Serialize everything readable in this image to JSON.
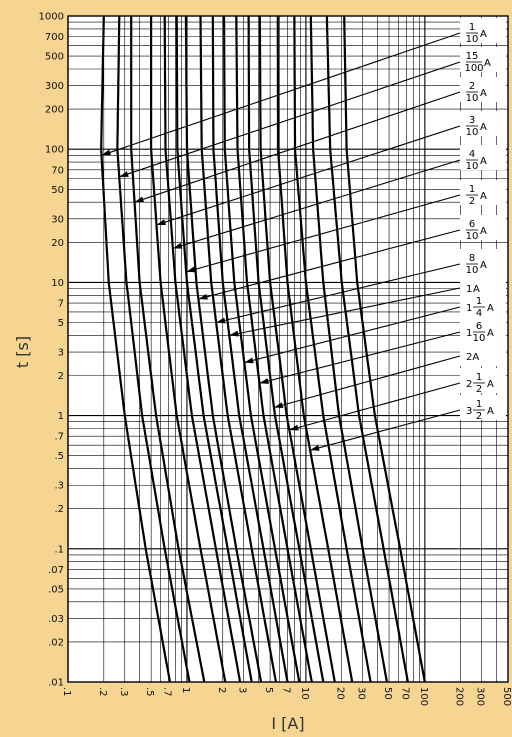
{
  "chart_data": {
    "type": "line",
    "title": "",
    "xlabel": "I [A]",
    "ylabel": "t [s]",
    "x_scale": "log",
    "y_scale": "log",
    "xlim": [
      0.1,
      500
    ],
    "ylim": [
      0.01,
      1000
    ],
    "grid": true,
    "x_tick_labels": [
      ".1",
      ".2",
      ".3",
      ".5",
      ".7",
      "1",
      "2",
      "3",
      "5",
      "7",
      "10",
      "20",
      "30",
      "50",
      "70",
      "100",
      "200",
      "300",
      "500"
    ],
    "y_tick_labels": [
      "1000",
      "700",
      "500",
      "300",
      "200",
      "100",
      "70",
      "50",
      "30",
      "20",
      "10",
      "7",
      "5",
      "3",
      "2",
      "1",
      ".7",
      ".5",
      ".3",
      ".2",
      ".1",
      ".07",
      ".05",
      ".03",
      ".02",
      ".01"
    ],
    "series": [
      {
        "name": "1/10 A",
        "label": {
          "whole": "",
          "num": "1",
          "den": "10",
          "unit": "A"
        },
        "points": [
          [
            0.2,
            1000
          ],
          [
            0.19,
            100
          ],
          [
            0.22,
            10
          ],
          [
            0.3,
            1
          ],
          [
            0.45,
            0.1
          ],
          [
            0.72,
            0.01
          ]
        ]
      },
      {
        "name": "15/100 A",
        "label": {
          "whole": "",
          "num": "15",
          "den": "100",
          "unit": "A"
        },
        "points": [
          [
            0.27,
            1000
          ],
          [
            0.26,
            100
          ],
          [
            0.31,
            10
          ],
          [
            0.42,
            1
          ],
          [
            0.65,
            0.1
          ],
          [
            1.05,
            0.01
          ]
        ]
      },
      {
        "name": "2/10 A",
        "label": {
          "whole": "",
          "num": "2",
          "den": "10",
          "unit": "A"
        },
        "points": [
          [
            0.34,
            1000
          ],
          [
            0.34,
            100
          ],
          [
            0.4,
            10
          ],
          [
            0.55,
            1
          ],
          [
            0.85,
            0.1
          ],
          [
            1.4,
            0.01
          ]
        ]
      },
      {
        "name": "3/10 A",
        "label": {
          "whole": "",
          "num": "3",
          "den": "10",
          "unit": "A"
        },
        "points": [
          [
            0.5,
            1000
          ],
          [
            0.5,
            100
          ],
          [
            0.6,
            10
          ],
          [
            0.82,
            1
          ],
          [
            1.3,
            0.1
          ],
          [
            2.1,
            0.01
          ]
        ]
      },
      {
        "name": "4/10 A",
        "label": {
          "whole": "",
          "num": "4",
          "den": "10",
          "unit": "A"
        },
        "points": [
          [
            0.65,
            1000
          ],
          [
            0.66,
            100
          ],
          [
            0.8,
            10
          ],
          [
            1.1,
            1
          ],
          [
            1.75,
            0.1
          ],
          [
            2.8,
            0.01
          ]
        ]
      },
      {
        "name": "1/2 A",
        "label": {
          "whole": "",
          "num": "1",
          "den": "2",
          "unit": "A"
        },
        "points": [
          [
            0.82,
            1000
          ],
          [
            0.83,
            100
          ],
          [
            1.0,
            10
          ],
          [
            1.38,
            1
          ],
          [
            2.2,
            0.1
          ],
          [
            3.5,
            0.01
          ]
        ]
      },
      {
        "name": "6/10 A",
        "label": {
          "whole": "",
          "num": "6",
          "den": "10",
          "unit": "A"
        },
        "points": [
          [
            0.98,
            1000
          ],
          [
            1.0,
            100
          ],
          [
            1.2,
            10
          ],
          [
            1.65,
            1
          ],
          [
            2.6,
            0.1
          ],
          [
            4.2,
            0.01
          ]
        ]
      },
      {
        "name": "8/10 A",
        "label": {
          "whole": "",
          "num": "8",
          "den": "10",
          "unit": "A"
        },
        "points": [
          [
            1.3,
            1000
          ],
          [
            1.33,
            100
          ],
          [
            1.6,
            10
          ],
          [
            2.2,
            1
          ],
          [
            3.5,
            0.1
          ],
          [
            5.6,
            0.01
          ]
        ]
      },
      {
        "name": "1 A",
        "label": {
          "whole": "1",
          "num": "",
          "den": "",
          "unit": "A"
        },
        "points": [
          [
            1.65,
            1000
          ],
          [
            1.67,
            100
          ],
          [
            2.0,
            10
          ],
          [
            2.75,
            1
          ],
          [
            4.4,
            0.1
          ],
          [
            7.0,
            0.01
          ]
        ]
      },
      {
        "name": "1 1/4 A",
        "label": {
          "whole": "1",
          "num": "1",
          "den": "4",
          "unit": "A"
        },
        "points": [
          [
            2.05,
            1000
          ],
          [
            2.08,
            100
          ],
          [
            2.5,
            10
          ],
          [
            3.45,
            1
          ],
          [
            5.5,
            0.1
          ],
          [
            8.8,
            0.01
          ]
        ]
      },
      {
        "name": "1 6/10 A",
        "label": {
          "whole": "1",
          "num": "6",
          "den": "10",
          "unit": "A"
        },
        "points": [
          [
            2.6,
            1000
          ],
          [
            2.66,
            100
          ],
          [
            3.2,
            10
          ],
          [
            4.4,
            1
          ],
          [
            7.0,
            0.1
          ],
          [
            11.2,
            0.01
          ]
        ]
      },
      {
        "name": "2 A",
        "label": {
          "whole": "",
          "num": "",
          "den": "",
          "unit": "2A"
        },
        "points": [
          [
            3.3,
            1000
          ],
          [
            3.33,
            100
          ],
          [
            4.0,
            10
          ],
          [
            5.5,
            1
          ],
          [
            8.8,
            0.1
          ],
          [
            14,
            0.01
          ]
        ]
      },
      {
        "name": "2 1/2 A",
        "label": {
          "whole": "2",
          "num": "1",
          "den": "2",
          "unit": "A"
        },
        "points": [
          [
            4.1,
            1000
          ],
          [
            4.16,
            100
          ],
          [
            5.0,
            10
          ],
          [
            6.9,
            1
          ],
          [
            11,
            0.1
          ],
          [
            17.5,
            0.01
          ]
        ]
      },
      {
        "name": "3 1/2 A",
        "label": {
          "whole": "3",
          "num": "1",
          "den": "2",
          "unit": "A"
        },
        "points": [
          [
            5.8,
            1000
          ],
          [
            5.83,
            100
          ],
          [
            7.0,
            10
          ],
          [
            9.6,
            1
          ],
          [
            15.4,
            0.1
          ],
          [
            24.5,
            0.01
          ]
        ]
      }
    ],
    "extra_curves": [
      {
        "points": [
          [
            8.0,
            1000
          ],
          [
            8.1,
            100
          ],
          [
            10,
            10
          ],
          [
            14,
            1
          ],
          [
            22,
            0.1
          ],
          [
            35,
            0.01
          ]
        ]
      },
      {
        "points": [
          [
            11,
            1000
          ],
          [
            11.5,
            100
          ],
          [
            14,
            10
          ],
          [
            19,
            1
          ],
          [
            30,
            0.1
          ],
          [
            48,
            0.01
          ]
        ]
      },
      {
        "points": [
          [
            15,
            1000
          ],
          [
            16,
            100
          ],
          [
            20,
            10
          ],
          [
            28,
            1
          ],
          [
            45,
            0.1
          ],
          [
            72,
            0.01
          ]
        ]
      },
      {
        "points": [
          [
            21,
            1000
          ],
          [
            22,
            100
          ],
          [
            27,
            10
          ],
          [
            38,
            1
          ],
          [
            62,
            0.1
          ],
          [
            100,
            0.01
          ]
        ]
      }
    ],
    "leaders": [
      {
        "series": 0,
        "t": 90
      },
      {
        "series": 1,
        "t": 62
      },
      {
        "series": 2,
        "t": 40
      },
      {
        "series": 3,
        "t": 27
      },
      {
        "series": 4,
        "t": 18
      },
      {
        "series": 5,
        "t": 12
      },
      {
        "series": 6,
        "t": 7.5
      },
      {
        "series": 7,
        "t": 5
      },
      {
        "series": 8,
        "t": 4
      },
      {
        "series": 9,
        "t": 2.5
      },
      {
        "series": 10,
        "t": 1.75
      },
      {
        "series": 11,
        "t": 1.15
      },
      {
        "series": 12,
        "t": 0.78
      },
      {
        "series": 13,
        "t": 0.55
      }
    ],
    "colors": {
      "background": "#F6D593",
      "plot_background": "#FFFFFF",
      "line": "#000000"
    }
  }
}
